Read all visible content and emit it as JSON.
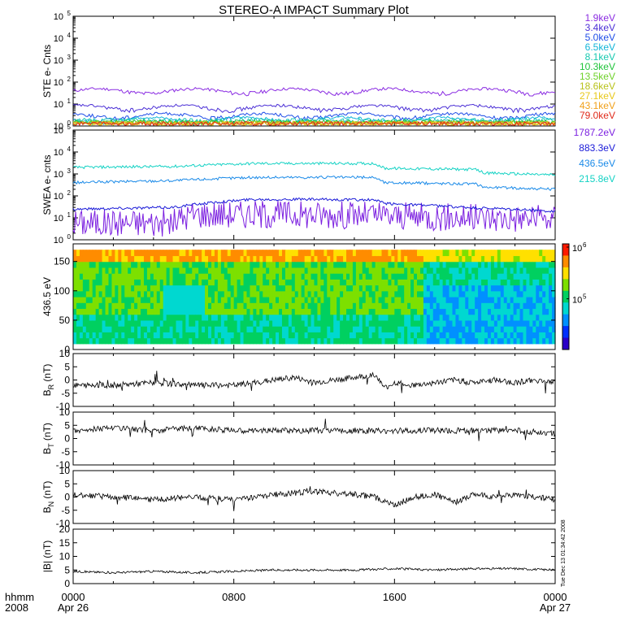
{
  "title": "STEREO-A IMPACT Summary Plot",
  "x_axis": {
    "corner_label_top": "hhmm",
    "corner_label_bottom": "2008",
    "ticks": [
      {
        "time": "0000",
        "date": "Apr 26",
        "frac": 0
      },
      {
        "time": "0800",
        "date": "",
        "frac": 0.3333
      },
      {
        "time": "1600",
        "date": "",
        "frac": 0.6667
      },
      {
        "time": "0000",
        "date": "Apr 27",
        "frac": 1
      }
    ]
  },
  "side_stamp": "Tue Dec 13 01:34:42 2008",
  "colors": {
    "ste_legend": [
      "#8a2be2",
      "#4b2fd6",
      "#1f4ee8",
      "#12b5d8",
      "#18c9b0",
      "#1fc43a",
      "#6fd12a",
      "#b8c21a",
      "#e8c81a",
      "#f0a01a",
      "#e02a1a"
    ],
    "swea_legend": [
      "#7b1fe0",
      "#1a1ad8",
      "#1a8ae8",
      "#14d2c4"
    ],
    "colorbar": [
      "#ff1a00",
      "#ff8c00",
      "#ffe000",
      "#7de000",
      "#00d060",
      "#00d8d0",
      "#0090ff",
      "#0030ff",
      "#2a00c8"
    ]
  },
  "chart_data": [
    {
      "type": "line",
      "panel": "ste",
      "ylabel": "STE e- Cnts",
      "yscale": "log",
      "ylim": [
        1,
        100000
      ],
      "ytick_labels": [
        "10^0",
        "10^1",
        "10^2",
        "10^3",
        "10^4",
        "10^5"
      ],
      "legend_placement": "right",
      "series": [
        {
          "name": "1.9keV",
          "level": 40
        },
        {
          "name": "3.4keV",
          "level": 7
        },
        {
          "name": "5.0keV",
          "level": 3
        },
        {
          "name": "6.5keV",
          "level": 2
        },
        {
          "name": "8.1keV",
          "level": 1.4
        },
        {
          "name": "10.3keV",
          "level": 1.2
        },
        {
          "name": "13.5keV",
          "level": 1.1
        },
        {
          "name": "18.6keV",
          "level": 1.05
        },
        {
          "name": "27.1keV",
          "level": 1.02
        },
        {
          "name": "43.1keV",
          "level": 1.01
        },
        {
          "name": "79.0keV",
          "level": 1.0
        }
      ]
    },
    {
      "type": "line",
      "panel": "swea",
      "ylabel": "SWEA e- cnts",
      "yscale": "log",
      "ylim": [
        1,
        100000
      ],
      "ytick_labels": [
        "10^0",
        "10^1",
        "10^2",
        "10^3",
        "10^4",
        "10^5"
      ],
      "legend_placement": "right",
      "series": [
        {
          "name": "1787.2eV",
          "x": [
            0,
            5,
            6,
            9,
            10,
            15,
            15.5,
            20,
            24
          ],
          "y": [
            6,
            6,
            15,
            15,
            15,
            13,
            12,
            10,
            9
          ]
        },
        {
          "name": "883.3eV",
          "x": [
            0,
            5,
            9,
            11,
            15,
            15.5,
            20,
            24
          ],
          "y": [
            25,
            30,
            70,
            70,
            65,
            45,
            28,
            20
          ]
        },
        {
          "name": "436.5eV",
          "x": [
            0,
            5,
            9,
            15,
            15.5,
            20,
            20.5,
            24
          ],
          "y": [
            400,
            500,
            700,
            700,
            400,
            350,
            250,
            200
          ]
        },
        {
          "name": "215.8eV",
          "x": [
            0,
            5,
            9,
            15,
            15.5,
            20,
            20.5,
            24
          ],
          "y": [
            2000,
            2200,
            3000,
            3000,
            1800,
            1600,
            1100,
            900
          ]
        }
      ]
    },
    {
      "type": "heatmap",
      "panel": "pitch",
      "ylabel": "436.5 eV",
      "ylim": [
        0,
        180
      ],
      "yticks": [
        0,
        50,
        100,
        150
      ],
      "colorbar": {
        "scale": "log",
        "tick_labels": [
          "10^6",
          "10^5"
        ],
        "tick_values": [
          1000000,
          100000
        ]
      },
      "data_range_y": [
        10,
        170
      ],
      "features": [
        {
          "x_range": [
            0,
            24
          ],
          "y_range": [
            150,
            170
          ],
          "level": "high"
        },
        {
          "x_range": [
            0,
            17.5
          ],
          "y_range": [
            10,
            150
          ],
          "level": "medium"
        },
        {
          "x_range": [
            17.5,
            24
          ],
          "y_range": [
            10,
            110
          ],
          "level": "low"
        }
      ]
    },
    {
      "type": "line",
      "panel": "br",
      "ylabel": "B_R (nT)",
      "ylim": [
        -10,
        10
      ],
      "yticks": [
        -10,
        -5,
        0,
        5,
        10
      ],
      "x": [
        0,
        2,
        4,
        6,
        8,
        10,
        11,
        12,
        13,
        14,
        15,
        15.5,
        16,
        17,
        18,
        19,
        20,
        21,
        22,
        23,
        24
      ],
      "y": [
        -2,
        -2,
        -1,
        -2,
        -2,
        0,
        1,
        -1,
        0,
        1,
        2,
        -3,
        -1,
        -2,
        -1,
        0,
        -1,
        0,
        -1,
        0,
        -1
      ]
    },
    {
      "type": "line",
      "panel": "bt",
      "ylabel": "B_T (nT)",
      "ylim": [
        -10,
        10
      ],
      "yticks": [
        -10,
        -5,
        0,
        5,
        10
      ],
      "x": [
        0,
        2,
        4,
        6,
        8,
        10,
        12,
        14,
        16,
        18,
        20,
        22,
        24
      ],
      "y": [
        3,
        4,
        3,
        4,
        3,
        3,
        3,
        3,
        3,
        3,
        3,
        3,
        2
      ]
    },
    {
      "type": "line",
      "panel": "bn",
      "ylabel": "B_N (nT)",
      "ylim": [
        -10,
        10
      ],
      "yticks": [
        -10,
        -5,
        0,
        5,
        10
      ],
      "x": [
        0,
        2,
        4,
        6,
        8,
        10,
        12,
        14,
        15,
        16,
        17,
        18,
        19,
        20,
        21,
        22,
        23,
        24
      ],
      "y": [
        1,
        0,
        -1,
        0,
        -1,
        1,
        2,
        1,
        0,
        -3,
        0,
        1,
        -2,
        1,
        0,
        1,
        0,
        -1
      ]
    },
    {
      "type": "line",
      "panel": "bmag",
      "ylabel": "|B| (nT)",
      "ylim": [
        0,
        20
      ],
      "yticks": [
        0,
        5,
        10,
        15,
        20
      ],
      "x": [
        0,
        2,
        4,
        6,
        8,
        10,
        12,
        14,
        16,
        18,
        20,
        22,
        24
      ],
      "y": [
        4.5,
        4,
        4.5,
        4,
        4.5,
        5,
        5,
        5,
        5.5,
        5,
        5.5,
        5.5,
        5
      ]
    }
  ]
}
